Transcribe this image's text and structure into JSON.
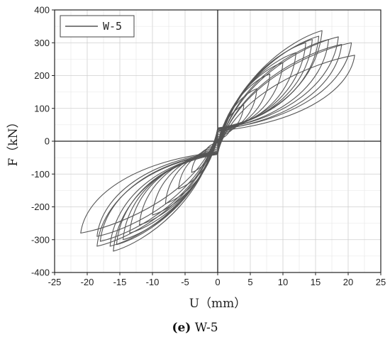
{
  "chart_data": {
    "type": "line",
    "xlabel": "U（mm）",
    "ylabel": "F（kN）",
    "xlim": [
      -25,
      25
    ],
    "ylim": [
      -400,
      400
    ],
    "xticks": [
      -25,
      -20,
      -15,
      -10,
      -5,
      0,
      5,
      10,
      15,
      20,
      25
    ],
    "yticks": [
      -400,
      -300,
      -200,
      -100,
      0,
      100,
      200,
      300,
      400
    ],
    "grid": true,
    "legend_position": "top-left",
    "series": [
      {
        "name": "W-5",
        "color": "#555555",
        "loops": [
          {
            "u_pos": 2,
            "f_pos": 45,
            "u_neg": -2,
            "f_neg": -40
          },
          {
            "u_pos": 4,
            "f_pos": 110,
            "u_neg": -4,
            "f_neg": -95
          },
          {
            "u_pos": 6,
            "f_pos": 160,
            "u_neg": -6,
            "f_neg": -145
          },
          {
            "u_pos": 8,
            "f_pos": 205,
            "u_neg": -8,
            "f_neg": -190
          },
          {
            "u_pos": 10,
            "f_pos": 240,
            "u_neg": -10,
            "f_neg": -225
          },
          {
            "u_pos": 12,
            "f_pos": 270,
            "u_neg": -12,
            "f_neg": -255
          },
          {
            "u_pos": 13.5,
            "f_pos": 300,
            "u_neg": -13.5,
            "f_neg": -280
          },
          {
            "u_pos": 14.5,
            "f_pos": 310,
            "u_neg": -14.5,
            "f_neg": -300
          },
          {
            "u_pos": 15.5,
            "f_pos": 320,
            "u_neg": -15.5,
            "f_neg": -315
          },
          {
            "u_pos": 16,
            "f_pos": 337,
            "u_neg": -16,
            "f_neg": -335
          },
          {
            "u_pos": 17,
            "f_pos": 310,
            "u_neg": -16.5,
            "f_neg": -320
          },
          {
            "u_pos": 18.5,
            "f_pos": 318,
            "u_neg": -18,
            "f_neg": -305
          },
          {
            "u_pos": 19,
            "f_pos": 295,
            "u_neg": -18.5,
            "f_neg": -320
          },
          {
            "u_pos": 20.5,
            "f_pos": 300,
            "u_neg": -18.5,
            "f_neg": -290
          },
          {
            "u_pos": 21,
            "f_pos": 262,
            "u_neg": -21,
            "f_neg": -280
          }
        ]
      }
    ]
  },
  "caption": {
    "label": "(e)",
    "text": " W-5"
  }
}
